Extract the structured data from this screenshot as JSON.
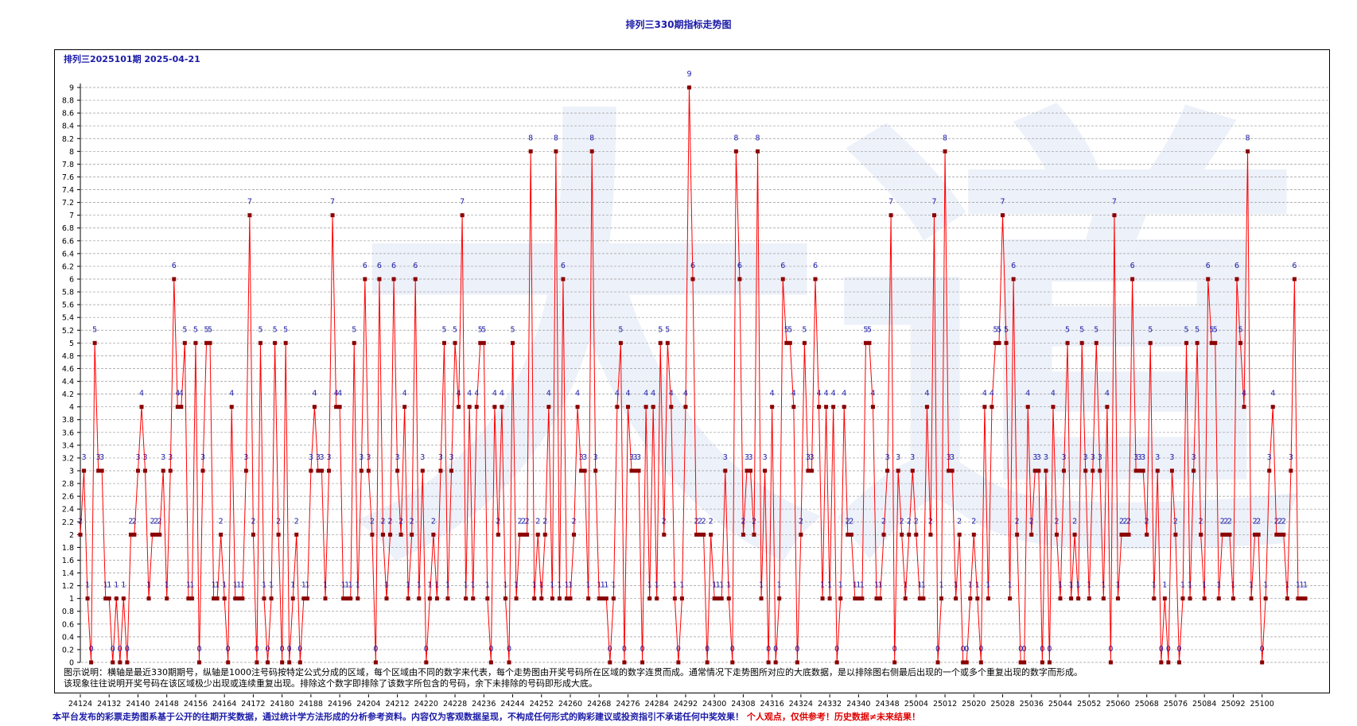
{
  "title": "排列三330期指标走势图",
  "subtitle": "排列三2025101期 2025-04-21",
  "notes": [
    "图示说明：横轴是最近330期期号，纵轴是1000注号码按特定公式分成的区域，每个区域由不同的数字来代表，每个走势图由开奖号码所在区域的数字连贯而成。通常情况下走势图所对应的大底数据，是以排除图右侧最后出现的一个或多个重复出现的数字而形成。",
    "该现象往往说明开奖号码在该区域极少出现或连续重复出现。排除这个数字即排除了该数字所包含的号码，余下未排除的号码即形成大底。"
  ],
  "disclaimer_blue": "本平台发布的彩票走势图系基于公开的往期开奖数据，通过统计学方法形成的分析参考资料。内容仅为客观数据呈现，不构成任何形式的购彩建议或投资指引不承诺任何中奖效果！",
  "disclaimer_red": "个人观点，仅供参考！历史数据≠未来结果！",
  "watermark": "大道",
  "chart_data": {
    "type": "line",
    "title": "排列三330期指标走势图",
    "xlabel": "",
    "ylabel": "",
    "ylim": [
      0,
      9
    ],
    "y_ticks": [
      "0",
      "0.2",
      "0.4",
      "0.6",
      "0.8",
      "1",
      "1.2",
      "1.4",
      "1.6",
      "1.8",
      "2",
      "2.2",
      "2.4",
      "2.6",
      "2.8",
      "3",
      "3.2",
      "3.4",
      "3.6",
      "3.8",
      "4",
      "4.2",
      "4.4",
      "4.6",
      "4.8",
      "5",
      "5.2",
      "5.4",
      "5.6",
      "5.8",
      "6",
      "6.2",
      "6.4",
      "6.6",
      "6.8",
      "7",
      "7.2",
      "7.4",
      "7.6",
      "7.8",
      "8",
      "8.2",
      "8.4",
      "8.6",
      "8.8",
      "9"
    ],
    "x_tick_labels": [
      "24124",
      "24132",
      "24140",
      "24148",
      "24156",
      "24164",
      "24172",
      "24180",
      "24188",
      "24196",
      "24204",
      "24212",
      "24220",
      "24228",
      "24236",
      "24244",
      "24252",
      "24260",
      "24268",
      "24276",
      "24284",
      "24292",
      "24300",
      "24308",
      "24316",
      "24324",
      "24332",
      "24340",
      "24348",
      "25004",
      "25012",
      "25020",
      "25028",
      "25036",
      "25044",
      "25052",
      "25060",
      "25068",
      "25076",
      "25084",
      "25092",
      "25100"
    ],
    "grid": true,
    "line_color": "#ff0000",
    "marker_color": "#8b0000",
    "label_color": "#1a1aa8",
    "values": [
      2,
      3,
      1,
      0,
      5,
      3,
      3,
      1,
      1,
      0,
      1,
      0,
      1,
      0,
      2,
      2,
      3,
      4,
      3,
      1,
      2,
      2,
      2,
      3,
      1,
      3,
      6,
      4,
      4,
      5,
      1,
      1,
      5,
      0,
      3,
      5,
      5,
      1,
      1,
      2,
      1,
      0,
      4,
      1,
      1,
      1,
      3,
      7,
      2,
      0,
      5,
      1,
      0,
      1,
      5,
      2,
      0,
      5,
      0,
      1,
      2,
      0,
      1,
      1,
      3,
      4,
      3,
      3,
      1,
      3,
      7,
      4,
      4,
      1,
      1,
      1,
      5,
      1,
      3,
      6,
      3,
      2,
      0,
      6,
      2,
      1,
      2,
      6,
      3,
      2,
      4,
      1,
      2,
      6,
      1,
      3,
      0,
      1,
      2,
      1,
      3,
      5,
      1,
      3,
      5,
      4,
      7,
      1,
      4,
      1,
      4,
      5,
      5,
      1,
      0,
      4,
      2,
      4,
      1,
      0,
      5,
      1,
      2,
      2,
      2,
      8,
      1,
      2,
      1,
      2,
      4,
      1,
      8,
      1,
      6,
      1,
      1,
      2,
      4,
      3,
      3,
      1,
      8,
      3,
      1,
      1,
      1,
      0,
      1,
      4,
      5,
      0,
      4,
      3,
      3,
      3,
      0,
      4,
      1,
      4,
      1,
      5,
      2,
      5,
      4,
      1,
      0,
      1,
      4,
      9,
      6,
      2,
      2,
      2,
      0,
      2,
      1,
      1,
      1,
      3,
      1,
      0,
      8,
      6,
      2,
      3,
      3,
      2,
      8,
      1,
      3,
      0,
      4,
      0,
      1,
      6,
      5,
      5,
      4,
      0,
      2,
      5,
      3,
      3,
      6,
      4,
      1,
      4,
      1,
      4,
      0,
      1,
      4,
      2,
      2,
      1,
      1,
      1,
      5,
      5,
      4,
      1,
      1,
      2,
      3,
      7,
      0,
      3,
      2,
      1,
      2,
      3,
      2,
      1,
      1,
      4,
      2,
      7,
      0,
      1,
      8,
      3,
      3,
      1,
      2,
      0,
      0,
      1,
      2,
      1,
      0,
      4,
      1,
      4,
      5,
      5,
      7,
      5,
      1,
      6,
      2,
      0,
      0,
      4,
      2,
      3,
      3,
      0,
      3,
      0,
      4,
      2,
      1,
      3,
      5,
      1,
      2,
      1,
      5,
      3,
      1,
      3,
      5,
      3,
      1,
      4,
      0,
      7,
      1,
      2,
      2,
      2,
      6,
      3,
      3,
      3,
      2,
      5,
      1,
      3,
      0,
      1,
      0,
      3,
      2,
      0,
      1,
      5,
      1,
      3,
      5,
      2,
      1,
      6,
      5,
      5,
      1,
      2,
      2,
      2,
      1,
      6,
      5,
      4,
      8,
      1,
      2,
      2,
      0,
      1,
      3,
      4,
      2,
      2,
      2,
      1,
      3,
      6,
      1,
      1,
      1
    ]
  }
}
